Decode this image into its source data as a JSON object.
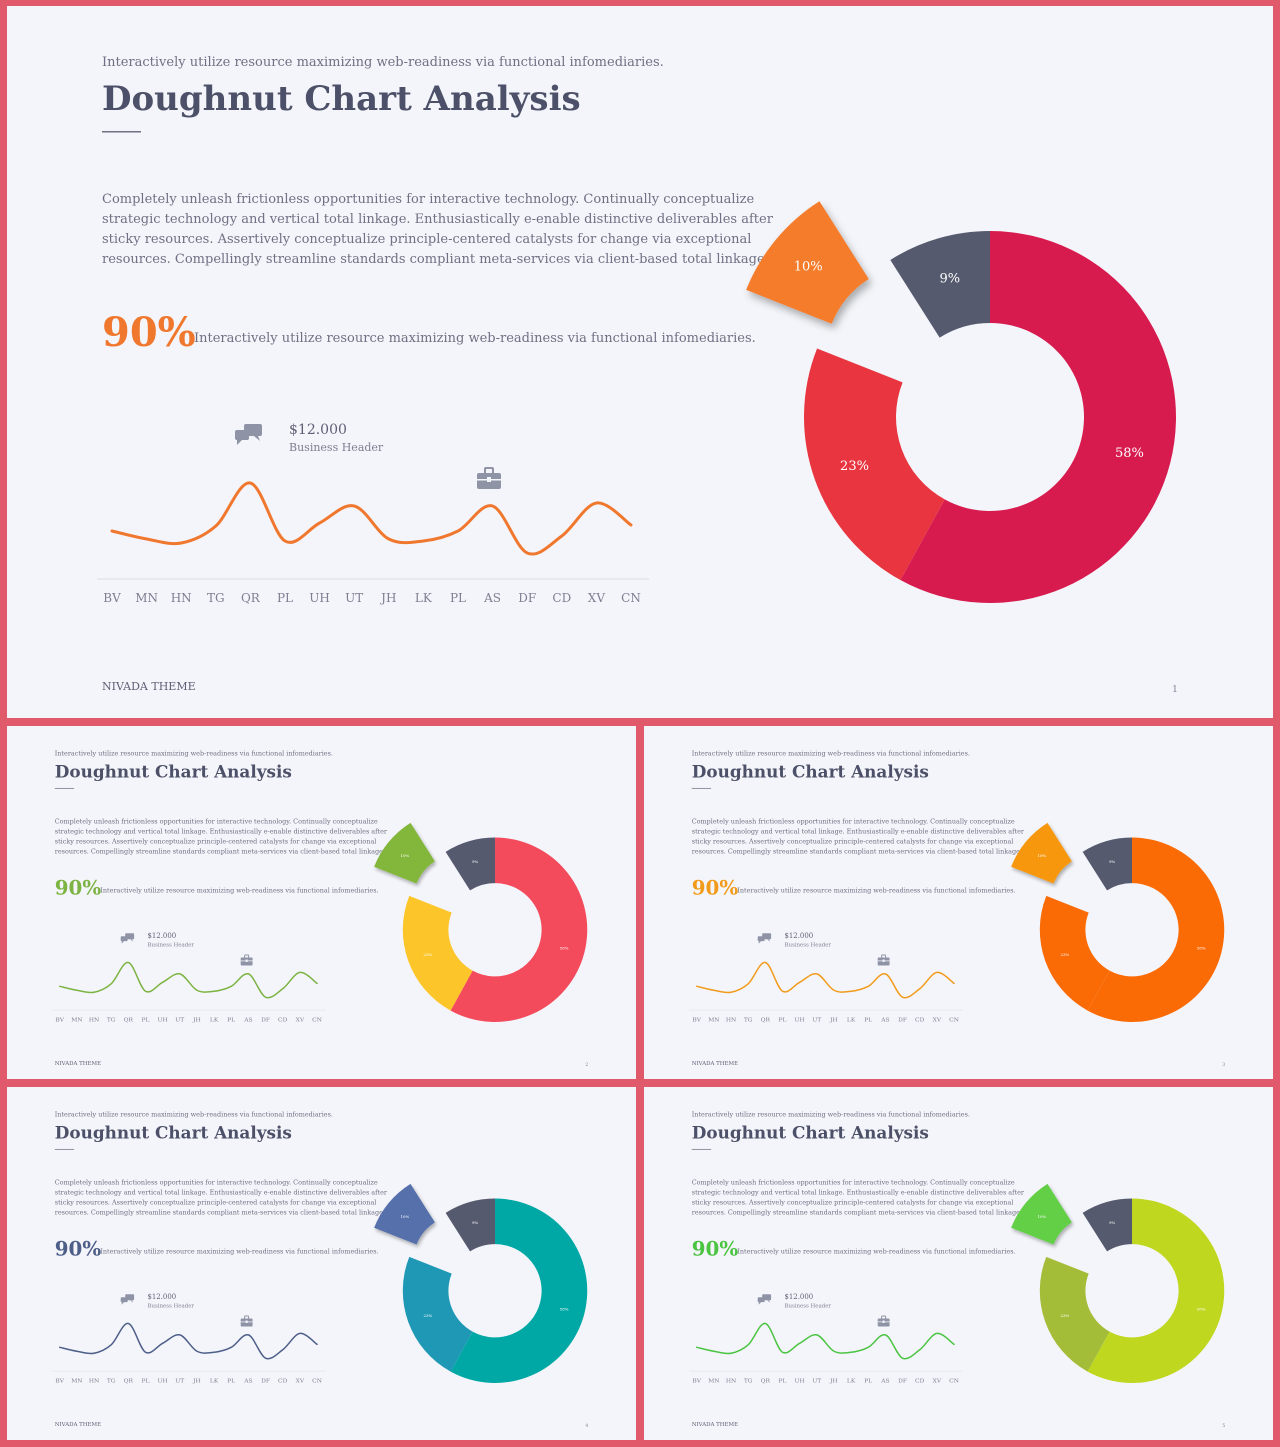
{
  "slides": [
    {
      "id": "s1",
      "number": "1",
      "accent": "#f0772e",
      "donut_colors": [
        "#d81b4f",
        "#e8353f",
        "#f47c2c",
        "#565a6e"
      ]
    },
    {
      "id": "s2",
      "number": "2",
      "accent": "#7cb342",
      "donut_colors": [
        "#f44b5c",
        "#fcc52a",
        "#82b73b",
        "#565a6e"
      ]
    },
    {
      "id": "s3",
      "number": "3",
      "accent": "#f29b1b",
      "donut_colors": [
        "#fb6b05",
        "#fb6b05",
        "#f7970c",
        "#565a6e"
      ]
    },
    {
      "id": "s4",
      "number": "4",
      "accent": "#4d5e88",
      "donut_colors": [
        "#00a8a5",
        "#1f98b6",
        "#566fac",
        "#565a6e"
      ]
    },
    {
      "id": "s5",
      "number": "5",
      "accent": "#4bc442",
      "donut_colors": [
        "#bfd71f",
        "#a3bd39",
        "#62cf47",
        "#565a6e"
      ]
    }
  ],
  "content": {
    "tagline": "Interactively utilize resource maximizing web-readiness via functional infomediaries.",
    "title": "Doughnut Chart Analysis",
    "body_lines": [
      "Completely unleash frictionless opportunities for interactive technology. Continually conceptualize",
      "strategic technology and vertical total linkage. Enthusiastically e-enable distinctive deliverables after",
      "sticky resources. Assertively conceptualize principle-centered catalysts for change via exceptional",
      "resources. Compellingly streamline standards compliant meta-services via client-based total linkage."
    ],
    "stat_value": "90%",
    "stat_text": "Interactively utilize resource maximizing web-readiness via functional infomediaries.",
    "callout_value": "$12.000",
    "callout_label": "Business Header",
    "footer_brand": "NIVADA THEME",
    "icons": [
      "chat-icon",
      "briefcase-icon"
    ]
  },
  "chart_data": [
    {
      "type": "line",
      "categories": [
        "BV",
        "MN",
        "HN",
        "TG",
        "QR",
        "PL",
        "UH",
        "UT",
        "JH",
        "LK",
        "PL",
        "AS",
        "DF",
        "CD",
        "XV",
        "CN"
      ],
      "values": [
        30,
        22,
        18,
        35,
        78,
        20,
        38,
        55,
        22,
        20,
        30,
        55,
        8,
        25,
        58,
        36
      ],
      "ylim": [
        0,
        100
      ]
    },
    {
      "type": "pie",
      "categories": [
        "58%",
        "23%",
        "10%",
        "9%"
      ],
      "values": [
        58,
        23,
        10,
        9
      ],
      "donut": true,
      "exploded": [
        "10%"
      ]
    }
  ]
}
